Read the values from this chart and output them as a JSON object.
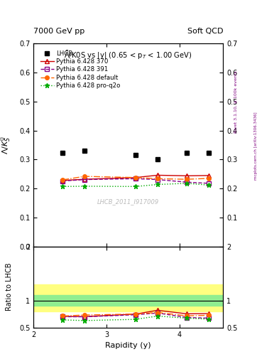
{
  "title_top_left": "7000 GeV pp",
  "title_top_right": "Soft QCD",
  "right_label1": "Rivet 3.1.10, ≥ 100k events",
  "right_label2": "mcplots.cern.ch [arXiv:1306.3436]",
  "plot_title": "$\\bar{\\Lambda}$/K0S vs |y| (0.65 < p$_T$ < 1.00 GeV)",
  "ylabel_main": "$\\bar{\\Lambda}/K^0_S$",
  "ylabel_ratio": "Ratio to LHCB",
  "xlabel": "Rapidity (y)",
  "watermark": "LHCB_2011_I917009",
  "xlim": [
    2.0,
    4.6
  ],
  "ylim_main": [
    0.0,
    0.7
  ],
  "ylim_ratio": [
    0.5,
    2.0
  ],
  "lhcb_x": [
    2.4,
    2.7,
    3.4,
    3.7,
    4.1,
    4.4
  ],
  "lhcb_y": [
    0.322,
    0.33,
    0.317,
    0.3,
    0.323,
    0.323
  ],
  "lhcb_yerr": [
    0.005,
    0.005,
    0.005,
    0.005,
    0.005,
    0.005
  ],
  "py370_x": [
    2.4,
    2.7,
    3.4,
    3.7,
    4.1,
    4.4
  ],
  "py370_y": [
    0.228,
    0.232,
    0.238,
    0.246,
    0.244,
    0.245
  ],
  "py391_x": [
    2.4,
    2.7,
    3.4,
    3.7,
    4.1,
    4.4
  ],
  "py391_y": [
    0.226,
    0.231,
    0.234,
    0.231,
    0.222,
    0.218
  ],
  "pydef_x": [
    2.4,
    2.7,
    3.4,
    3.7,
    4.1,
    4.4
  ],
  "pydef_y": [
    0.23,
    0.242,
    0.238,
    0.234,
    0.232,
    0.235
  ],
  "pyq2o_x": [
    2.4,
    2.7,
    3.4,
    3.7,
    4.1,
    4.4
  ],
  "pyq2o_y": [
    0.207,
    0.208,
    0.207,
    0.214,
    0.218,
    0.212
  ],
  "band_green_lo": 0.9,
  "band_green_hi": 1.1,
  "band_yellow_lo": 0.8,
  "band_yellow_hi": 1.3,
  "color_370": "#cc0000",
  "color_391": "#880088",
  "color_default": "#ff6600",
  "color_q2o": "#00aa00",
  "color_lhcb": "#000000",
  "color_band_green": "#90ee90",
  "color_band_yellow": "#ffff80"
}
